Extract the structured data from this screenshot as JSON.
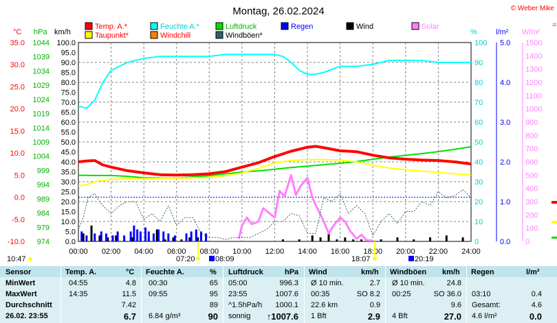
{
  "title": "Montag, 26.02.2024",
  "copyright": "© Weber Mike",
  "colors": {
    "temp": "#ff0000",
    "taupunkt": "#ffff00",
    "feuchte": "#00ffff",
    "windchill": "#ff8000",
    "luftdruck": "#00e000",
    "windboeen": "#306060",
    "regen": "#0000ff",
    "wind": "#000000",
    "solar": "#ff80ff",
    "grid": "#808080",
    "table_bg": "#dcf0f4"
  },
  "legend": [
    {
      "label": "Temp. A.*",
      "color": "#ff0000",
      "text_color": "#ff0000"
    },
    {
      "label": "Taupunkt*",
      "color": "#ffff00",
      "text_color": "#ff0000"
    },
    {
      "label": "Feuchte A.*",
      "color": "#00ffff",
      "text_color": "#00d0d0"
    },
    {
      "label": "Windchill",
      "color": "#ff8000",
      "text_color": "#ff0000"
    },
    {
      "label": "Luftdruck",
      "color": "#00e000",
      "text_color": "#00b000"
    },
    {
      "label": "Windböen*",
      "color": "#306060",
      "text_color": "#000000"
    },
    {
      "label": "Regen",
      "color": "#0000ff",
      "text_color": "#0000ff"
    },
    {
      "label": "Wind",
      "color": "#000000",
      "text_color": "#000000"
    },
    {
      "label": "Solar",
      "color": "#ff80ff",
      "text_color": "#ff80ff"
    }
  ],
  "axis_units": {
    "temp": "°C",
    "pressure": "hPa",
    "wind": "km/h",
    "humidity": "%",
    "rain": "l/m²",
    "solar": "W/m²"
  },
  "chart_data": {
    "type": "line",
    "title": "Montag, 26.02.2024",
    "x_ticks": [
      "00:00",
      "02:00",
      "04:00",
      "06:00",
      "08:00",
      "10:00",
      "12:00",
      "14:00",
      "16:00",
      "18:00",
      "20:00",
      "22:00",
      "24:00"
    ],
    "axes": {
      "temp_c": {
        "ylim": [
          -10,
          35
        ],
        "ticks": [
          "35.0",
          "30.0",
          "25.0",
          "20.0",
          "15.0",
          "10.0",
          "5.0",
          "0.0",
          "-5.0",
          "-10.0"
        ]
      },
      "pressure_hpa": {
        "ylim": [
          974,
          1044
        ],
        "ticks": [
          "1044",
          "1039",
          "1034",
          "1029",
          "1024",
          "1019",
          "1014",
          "1009",
          "1004",
          "999",
          "994",
          "989",
          "984",
          "979",
          "974"
        ]
      },
      "wind_kmh": {
        "ylim": [
          0,
          100
        ],
        "ticks": [
          "100.0",
          "95.0",
          "90.0",
          "85.0",
          "80.0",
          "75.0",
          "70.0",
          "65.0",
          "60.0",
          "55.0",
          "50.0",
          "45.0",
          "40.0",
          "35.0",
          "30.0",
          "25.0",
          "20.0",
          "15.0",
          "10.0",
          "5.0",
          "0.0"
        ]
      },
      "humidity_pct": {
        "ylim": [
          0,
          100
        ],
        "ticks": [
          "100",
          "90",
          "80",
          "70",
          "60",
          "50",
          "40",
          "30",
          "20",
          "10",
          "0"
        ]
      },
      "rain_lm2": {
        "ylim": [
          0,
          5
        ],
        "ticks": [
          "5.0",
          "4.0",
          "3.0",
          "2.0",
          "1.0",
          "0.0"
        ]
      },
      "solar_wm2": {
        "ylim": [
          0,
          1500
        ],
        "ticks": [
          "1500",
          "1400",
          "1300",
          "1200",
          "1100",
          "1000",
          "900",
          "800",
          "700",
          "600",
          "500",
          "400",
          "300",
          "200",
          "100",
          "0"
        ]
      }
    },
    "series": [
      {
        "name": "Temp. A.*",
        "axis": "temp_c",
        "x": [
          0,
          0.5,
          1,
          1.5,
          2,
          3,
          4,
          5,
          6,
          7,
          8,
          9,
          10,
          11,
          12,
          13,
          14,
          14.5,
          15,
          16,
          17,
          18,
          19,
          20,
          21,
          22,
          23,
          24
        ],
        "y": [
          8.0,
          8.2,
          8.3,
          7.3,
          6.8,
          6.0,
          5.5,
          5.1,
          5.0,
          5.1,
          5.3,
          5.8,
          6.8,
          7.8,
          9.2,
          10.4,
          11.3,
          11.5,
          11.2,
          10.5,
          10.3,
          9.5,
          8.9,
          8.6,
          8.4,
          8.3,
          8.0,
          7.5
        ]
      },
      {
        "name": "Taupunkt*",
        "axis": "temp_c",
        "x": [
          0,
          0.5,
          1,
          1.5,
          2,
          3,
          4,
          5,
          6,
          7,
          8,
          9,
          10,
          11,
          12,
          13,
          14,
          15,
          16,
          17,
          18,
          19,
          20,
          21,
          22,
          23,
          24
        ],
        "y": [
          2.6,
          2.8,
          3.5,
          3.8,
          4.0,
          4.2,
          4.2,
          4.3,
          4.3,
          4.4,
          4.5,
          4.9,
          5.5,
          6.5,
          7.8,
          8.3,
          8.5,
          8.5,
          8.4,
          8.0,
          7.2,
          6.6,
          6.2,
          5.9,
          5.6,
          5.3,
          5.0
        ]
      },
      {
        "name": "Feuchte A.*",
        "axis": "humidity_pct",
        "x": [
          0,
          0.5,
          1,
          1.5,
          2,
          3,
          4,
          5,
          6,
          7,
          8,
          9,
          10,
          11,
          12,
          12.5,
          13,
          13.5,
          14,
          14.5,
          15,
          16,
          17,
          18,
          19,
          20,
          21,
          22,
          23,
          24
        ],
        "y": [
          68,
          67,
          71,
          80,
          86,
          90,
          92,
          93,
          93,
          93,
          93,
          94,
          94,
          94,
          94,
          93,
          90,
          86,
          84,
          84,
          85,
          88,
          88,
          89,
          91,
          91,
          91,
          90,
          90,
          90
        ]
      },
      {
        "name": "Luftdruck",
        "axis": "pressure_hpa",
        "x": [
          0,
          1,
          2,
          3,
          4,
          5,
          6,
          7,
          8,
          9,
          10,
          11,
          12,
          13,
          14,
          15,
          16,
          17,
          18,
          19,
          20,
          21,
          22,
          23,
          24
        ],
        "y": [
          997.3,
          997.2,
          997.2,
          996.9,
          996.4,
          996.4,
          996.3,
          996.7,
          997.1,
          997.8,
          998.4,
          998.8,
          999.4,
          1000.0,
          1000.5,
          1001.0,
          1001.5,
          1002.1,
          1002.9,
          1003.7,
          1004.3,
          1004.9,
          1005.6,
          1006.4,
          1007.3
        ]
      },
      {
        "name": "Windböen*",
        "axis": "wind_kmh",
        "x": [
          0,
          0.3,
          0.6,
          1,
          1.3,
          1.6,
          2,
          2.5,
          3,
          3.5,
          4,
          4.5,
          5,
          5.5,
          6,
          6.5,
          7,
          7.5,
          8,
          8.5,
          9,
          9.5,
          10,
          10.5,
          11,
          11.5,
          12,
          12.5,
          13,
          13.5,
          14,
          14.5,
          15,
          15.5,
          16,
          16.5,
          17,
          17.5,
          18,
          18.5,
          19,
          19.5,
          20,
          20.5,
          21,
          21.5,
          22,
          22.5,
          23,
          23.5,
          24
        ],
        "y": [
          6,
          12,
          22,
          24,
          20,
          17,
          14,
          18,
          20,
          20,
          11,
          14,
          10,
          18,
          8,
          12,
          12,
          4,
          2,
          2,
          1,
          2,
          2,
          2,
          4,
          6,
          10,
          10,
          14,
          13,
          4,
          4,
          22,
          20,
          24,
          14,
          18,
          14,
          3,
          10,
          14,
          9,
          15,
          15,
          20,
          18,
          25,
          22,
          23,
          26,
          22
        ]
      },
      {
        "name": "Solar",
        "axis": "solar_wm2",
        "x": [
          9.8,
          10,
          10.3,
          10.6,
          11,
          11.3,
          11.6,
          12,
          12.3,
          12.6,
          13,
          13.3,
          13.6,
          14,
          14.3,
          14.6,
          15,
          15.3,
          15.6,
          16,
          16.3,
          16.6,
          17,
          17.3,
          17.6,
          18
        ],
        "y": [
          20,
          120,
          180,
          130,
          150,
          250,
          220,
          180,
          380,
          340,
          500,
          350,
          420,
          480,
          330,
          250,
          150,
          60,
          120,
          180,
          150,
          80,
          20,
          50,
          10,
          5
        ]
      }
    ],
    "bars": [
      {
        "name": "Wind",
        "axis": "wind_kmh",
        "x": [
          0.3,
          0.8,
          1.3,
          1.8,
          2.3,
          2.8,
          3.3,
          3.8,
          4.3,
          4.8,
          5.3,
          5.8,
          6.3,
          6.8,
          7.3,
          7.8,
          12.5,
          13.5,
          14.3,
          14.8,
          15.3,
          15.8,
          16.3,
          16.8,
          17.3,
          18.5,
          19.5,
          20.5,
          21.5,
          22.5,
          23.5
        ],
        "y": [
          4,
          8,
          3,
          2,
          3,
          1,
          2,
          3,
          2,
          6,
          1,
          2,
          1,
          2,
          2,
          1,
          1,
          1,
          3,
          2,
          4,
          1,
          2,
          1,
          1,
          1,
          2,
          1,
          2,
          3,
          2
        ]
      },
      {
        "name": "Regen",
        "axis": "wind_kmh",
        "x": [
          0.2,
          0.5,
          1.0,
          1.4,
          1.7,
          2.1,
          2.4,
          2.8,
          3.2,
          3.4,
          3.6,
          3.8,
          4.1,
          4.3,
          4.6,
          4.9,
          5.2,
          5.5,
          5.9,
          6.6,
          6.9,
          7.2,
          7.5,
          7.8
        ],
        "y": [
          5,
          3,
          4,
          5,
          4,
          3,
          5,
          3,
          5,
          8,
          6,
          5,
          7,
          5,
          4,
          6,
          5,
          4,
          3,
          4,
          5,
          6,
          5,
          4
        ]
      }
    ],
    "markers": {
      "left_time": "10:47",
      "sunrise": "07:20",
      "moonrise": "08:09",
      "sunset": "18:07",
      "moonset": "20:19"
    }
  },
  "table": {
    "headers": {
      "sensor": "Sensor",
      "temp": "Temp. A.",
      "temp_unit": "°C",
      "feuchte": "Feuchte A.",
      "feuchte_unit": "%",
      "luftdruck": "Luftdruck",
      "luftdruck_unit": "hPa",
      "wind": "Wind",
      "wind_unit": "km/h",
      "windboeen": "Windböen",
      "windboeen_unit": "km/h",
      "regen": "Regen",
      "regen_unit": "l/m²"
    },
    "rows": [
      {
        "label": "MinWert",
        "temp_time": "04:55",
        "temp_val": "4.8",
        "feuchte_time": "00:30",
        "feuchte_val": "65",
        "druck_time": "05:00",
        "druck_val": "996.3",
        "wind_time": "Ø 10 min.",
        "wind_val": "2.7",
        "boeen_time": "Ø 10 min.",
        "boeen_val": "24.8",
        "regen_time": "",
        "regen_val": ""
      },
      {
        "label": "MaxWert",
        "temp_time": "14:35",
        "temp_val": "11.5",
        "feuchte_time": "09:55",
        "feuchte_val": "95",
        "druck_time": "23:55",
        "druck_val": "1007.6",
        "wind_time": "00:35",
        "wind_val": "SO 8.2",
        "boeen_time": "00:25",
        "boeen_val": "SO 36.0",
        "regen_time": "03:10",
        "regen_val": "0.4"
      },
      {
        "label": "Durchschnitt",
        "temp_time": "",
        "temp_val": "7.42",
        "feuchte_time": "",
        "feuchte_val": "89",
        "druck_time": "^1.5hPa/h",
        "druck_val": "1000.1",
        "wind_time": "22.6 km",
        "wind_val": "0.9",
        "boeen_time": "",
        "boeen_val": "9.6",
        "regen_time": "Gesamt:",
        "regen_val": "4.6"
      },
      {
        "label": "26.02. 23:55",
        "temp_time": "",
        "temp_val": "6.7",
        "feuchte_time": "6.84 g/m³",
        "feuchte_val": "90",
        "druck_time": "sonnig",
        "druck_val": "↑1007.6",
        "wind_time": "1 Bft",
        "wind_val": "2.9",
        "boeen_time": "4 Bft",
        "boeen_val": "27.0",
        "regen_time": "4.6 l/m²",
        "regen_val": "0.0"
      }
    ]
  }
}
